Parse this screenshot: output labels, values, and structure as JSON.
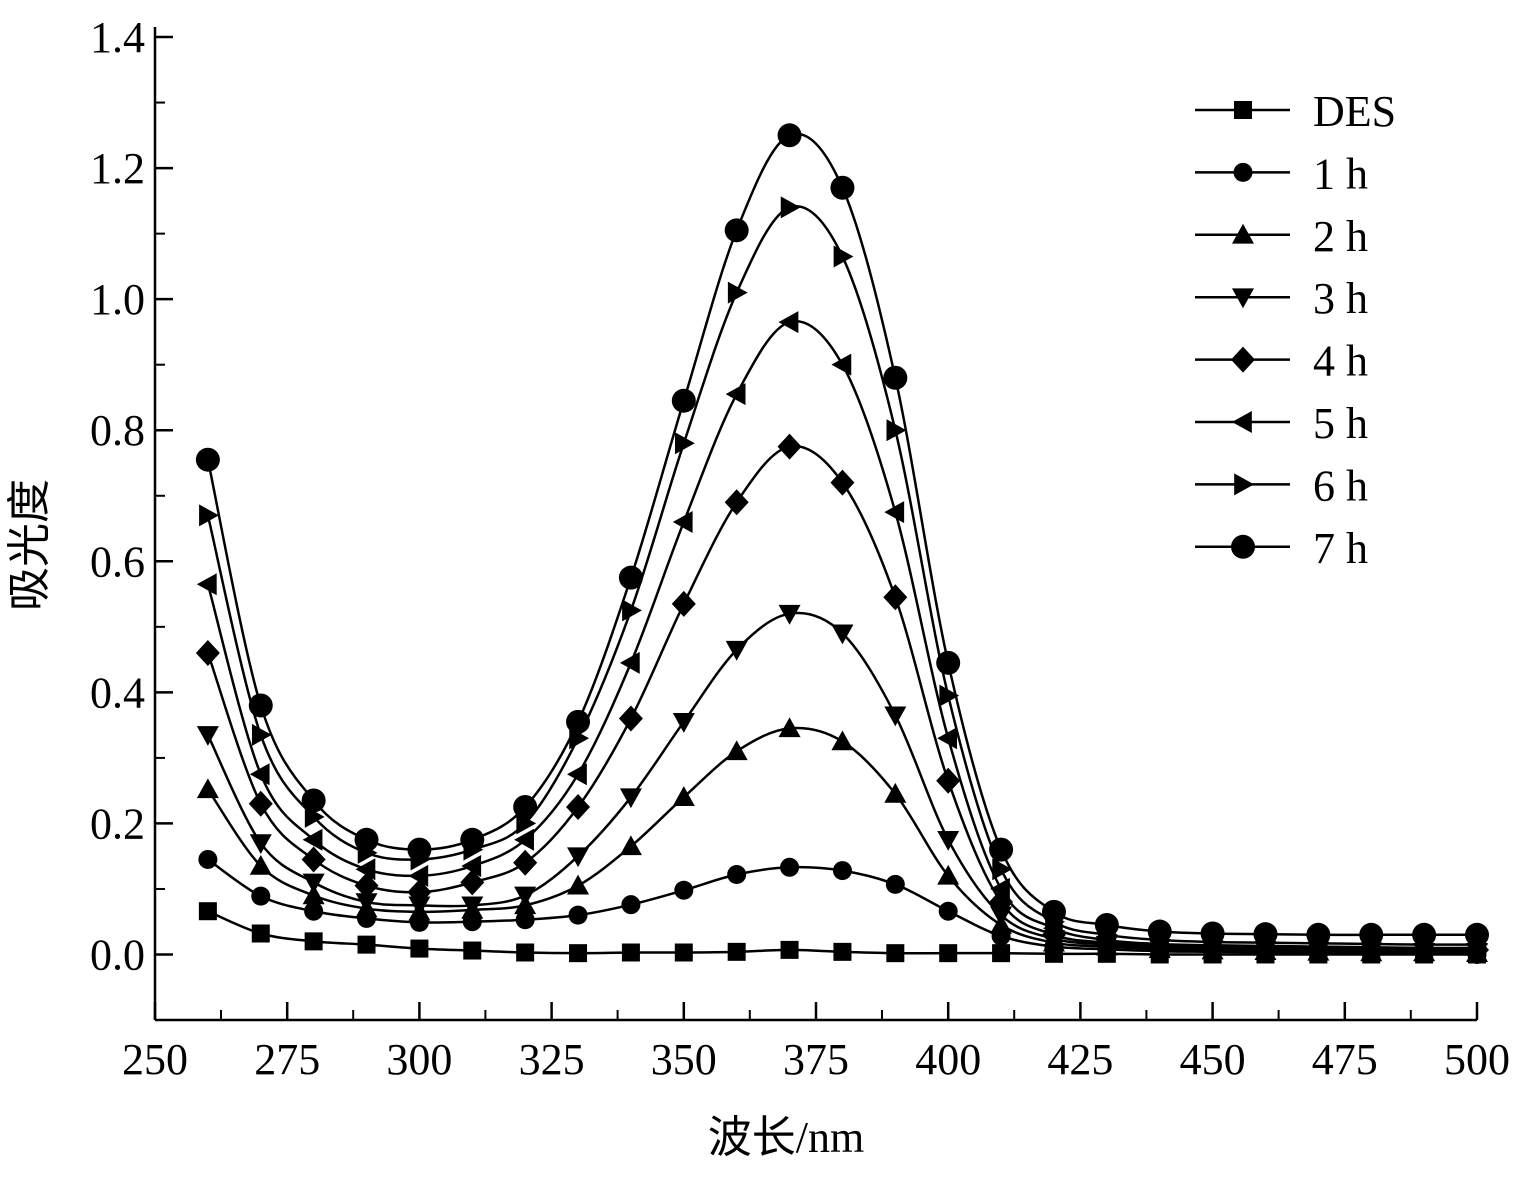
{
  "chart_data": {
    "type": "line",
    "title": "",
    "xlabel": "波长/nm",
    "ylabel": "吸光度",
    "xlim": [
      250,
      500
    ],
    "ylim": [
      -0.1,
      1.4
    ],
    "xticks": [
      "250",
      "275",
      "300",
      "325",
      "350",
      "375",
      "400",
      "425",
      "450",
      "475",
      "500"
    ],
    "yticks": [
      "0.0",
      "0.2",
      "0.4",
      "0.6",
      "0.8",
      "1.0",
      "1.2",
      "1.4"
    ],
    "grid": false,
    "legend_position": "top-right",
    "x": [
      260,
      270,
      280,
      290,
      300,
      310,
      320,
      330,
      340,
      350,
      360,
      370,
      380,
      390,
      400,
      410,
      420,
      430,
      440,
      450,
      460,
      470,
      480,
      490,
      500
    ],
    "series": [
      {
        "name": "DES",
        "marker": "square",
        "values": [
          0.066,
          0.032,
          0.02,
          0.015,
          0.009,
          0.006,
          0.003,
          0.002,
          0.003,
          0.003,
          0.004,
          0.007,
          0.004,
          0.002,
          0.002,
          0.002,
          0.001,
          0.001,
          0.0,
          0.0,
          0.0,
          0.0,
          0.0,
          0.0,
          0.0
        ]
      },
      {
        "name": "1 h",
        "marker": "circle-small",
        "values": [
          0.145,
          0.089,
          0.066,
          0.055,
          0.049,
          0.05,
          0.053,
          0.06,
          0.076,
          0.098,
          0.122,
          0.133,
          0.128,
          0.107,
          0.066,
          0.028,
          0.012,
          0.008,
          0.005,
          0.004,
          0.003,
          0.002,
          0.002,
          0.001,
          0.0
        ]
      },
      {
        "name": "2 h",
        "marker": "triangle-up",
        "values": [
          0.252,
          0.135,
          0.09,
          0.07,
          0.065,
          0.068,
          0.075,
          0.105,
          0.165,
          0.24,
          0.31,
          0.345,
          0.325,
          0.245,
          0.12,
          0.045,
          0.018,
          0.012,
          0.008,
          0.006,
          0.005,
          0.004,
          0.003,
          0.003,
          0.002
        ]
      },
      {
        "name": "3 h",
        "marker": "triangle-down",
        "values": [
          0.335,
          0.17,
          0.11,
          0.08,
          0.075,
          0.075,
          0.09,
          0.15,
          0.24,
          0.355,
          0.465,
          0.52,
          0.49,
          0.365,
          0.175,
          0.06,
          0.024,
          0.015,
          0.01,
          0.008,
          0.007,
          0.006,
          0.005,
          0.004,
          0.004
        ]
      },
      {
        "name": "4 h",
        "marker": "diamond",
        "values": [
          0.46,
          0.23,
          0.145,
          0.105,
          0.095,
          0.11,
          0.14,
          0.225,
          0.36,
          0.535,
          0.69,
          0.775,
          0.72,
          0.545,
          0.265,
          0.08,
          0.03,
          0.018,
          0.013,
          0.011,
          0.01,
          0.009,
          0.008,
          0.007,
          0.007
        ]
      },
      {
        "name": "5 h",
        "marker": "triangle-left",
        "values": [
          0.565,
          0.275,
          0.175,
          0.13,
          0.12,
          0.135,
          0.175,
          0.275,
          0.445,
          0.66,
          0.855,
          0.965,
          0.9,
          0.675,
          0.33,
          0.1,
          0.04,
          0.022,
          0.016,
          0.014,
          0.013,
          0.012,
          0.011,
          0.01,
          0.01
        ]
      },
      {
        "name": "6 h",
        "marker": "triangle-right",
        "values": [
          0.67,
          0.335,
          0.21,
          0.155,
          0.145,
          0.16,
          0.2,
          0.33,
          0.525,
          0.78,
          1.01,
          1.14,
          1.065,
          0.8,
          0.395,
          0.13,
          0.05,
          0.03,
          0.022,
          0.019,
          0.018,
          0.017,
          0.016,
          0.015,
          0.015
        ]
      },
      {
        "name": "7 h",
        "marker": "circle",
        "values": [
          0.755,
          0.38,
          0.235,
          0.175,
          0.16,
          0.175,
          0.225,
          0.355,
          0.575,
          0.845,
          1.105,
          1.25,
          1.17,
          0.88,
          0.445,
          0.16,
          0.065,
          0.045,
          0.035,
          0.032,
          0.031,
          0.03,
          0.03,
          0.03,
          0.03
        ]
      }
    ]
  }
}
